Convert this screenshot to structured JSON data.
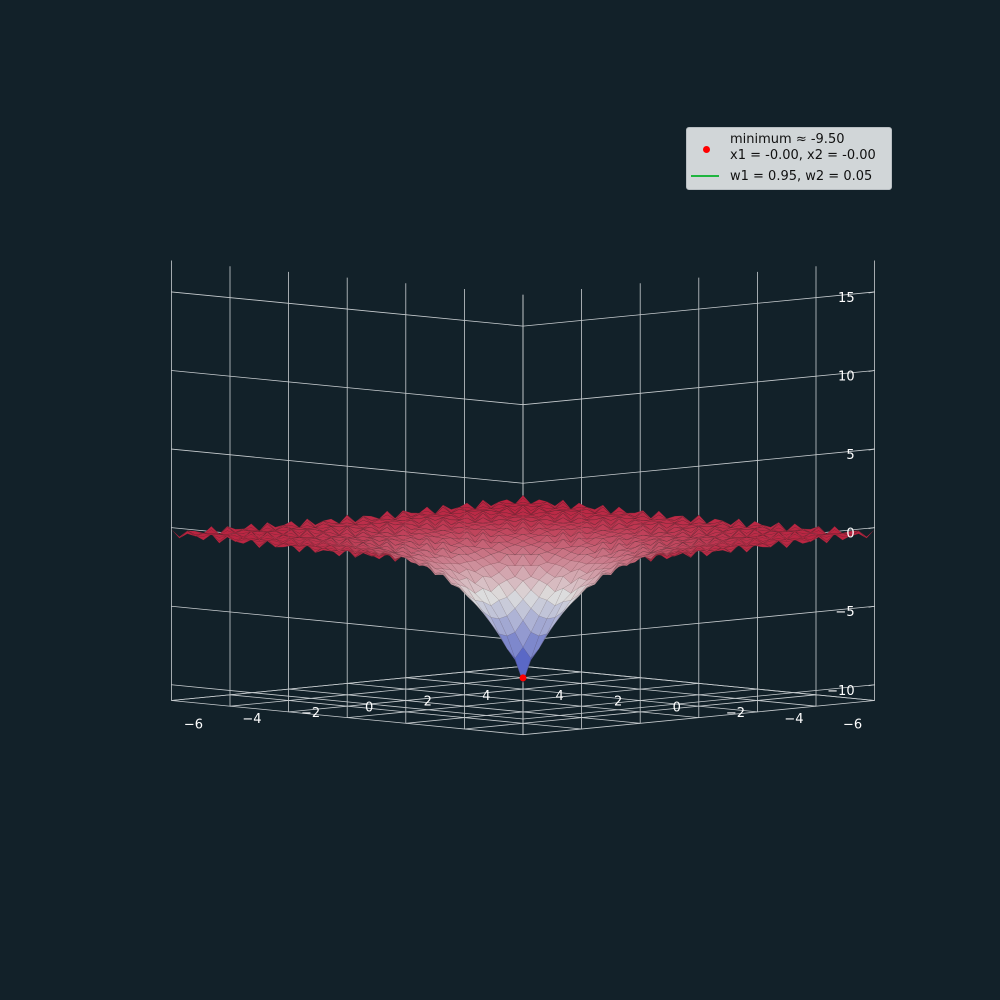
{
  "colors": {
    "background": "#122129",
    "pane_grid": "#c8cdd0",
    "surface_low": "#3b4cc0",
    "surface_mid": "#dddddd",
    "surface_high": "#b40426",
    "minimum_marker": "#ff0000",
    "weights_line": "#1fb53f"
  },
  "chart_data": {
    "type": "surface3d",
    "title": "",
    "xlabel": "",
    "ylabel": "",
    "zlabel": "",
    "x_range": [
      -6,
      6
    ],
    "y_range": [
      -6,
      6
    ],
    "z_range": [
      -11,
      17
    ],
    "x_ticks": [
      -6,
      -4,
      -2,
      0,
      2,
      4
    ],
    "y_ticks": [
      -6,
      -4,
      -2,
      0,
      2,
      4
    ],
    "z_ticks": [
      -10,
      -5,
      0,
      5,
      10,
      15
    ],
    "x_tick_labels": [
      "−6",
      "−4",
      "−2",
      "0",
      "2",
      "4"
    ],
    "y_tick_labels": [
      "−6",
      "−4",
      "−2",
      "0",
      "2",
      "4"
    ],
    "z_tick_labels": [
      "−10",
      "−5",
      "0",
      "5",
      "10",
      "15"
    ],
    "surface": {
      "weights": {
        "w1": 0.95,
        "w2": 0.05
      },
      "colormap": "coolwarm",
      "minimum_value": -9.5,
      "maximum_value": 0.3
    },
    "minimum_point": {
      "x1": 0.0,
      "x2": 0.0,
      "z": -9.5
    },
    "legend": {
      "placement": "top-right",
      "entries": [
        {
          "kind": "point",
          "line1": "minimum ≈ -9.50",
          "line2": "x1 = -0.00, x2 = -0.00"
        },
        {
          "kind": "line",
          "line1": "w1 = 0.95, w2 = 0.05"
        }
      ]
    }
  }
}
